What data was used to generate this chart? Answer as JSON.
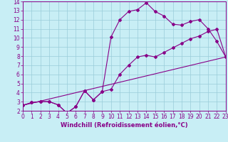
{
  "xlabel": "Windchill (Refroidissement éolien,°C)",
  "xlim": [
    0,
    23
  ],
  "ylim": [
    2,
    14
  ],
  "xticks": [
    0,
    1,
    2,
    3,
    4,
    5,
    6,
    7,
    8,
    9,
    10,
    11,
    12,
    13,
    14,
    15,
    16,
    17,
    18,
    19,
    20,
    21,
    22,
    23
  ],
  "yticks": [
    2,
    3,
    4,
    5,
    6,
    7,
    8,
    9,
    10,
    11,
    12,
    13,
    14
  ],
  "bg_color": "#c8eef5",
  "grid_color": "#99ccd9",
  "line_color": "#880088",
  "line1_x": [
    0,
    1,
    2,
    3,
    4,
    5,
    6,
    7,
    8,
    9,
    10,
    11,
    12,
    13,
    14,
    15,
    16,
    17,
    18,
    19,
    20,
    21,
    22,
    23
  ],
  "line1_y": [
    2.6,
    2.9,
    3.0,
    3.0,
    2.65,
    1.75,
    2.45,
    4.2,
    3.2,
    4.1,
    4.35,
    6.0,
    7.0,
    7.9,
    8.1,
    7.9,
    8.4,
    8.9,
    9.4,
    9.9,
    10.2,
    10.7,
    10.95,
    7.9
  ],
  "line2_x": [
    0,
    1,
    2,
    3,
    4,
    5,
    6,
    7,
    8,
    9,
    10,
    11,
    12,
    13,
    14,
    15,
    16,
    17,
    18,
    19,
    20,
    21,
    22,
    23
  ],
  "line2_y": [
    2.6,
    2.9,
    3.0,
    3.0,
    2.65,
    1.75,
    2.45,
    4.2,
    3.2,
    4.1,
    10.1,
    12.0,
    12.9,
    13.1,
    13.85,
    12.9,
    12.4,
    11.5,
    11.4,
    11.8,
    12.0,
    11.0,
    9.6,
    7.9
  ],
  "line3_x": [
    0,
    23
  ],
  "line3_y": [
    2.6,
    7.9
  ],
  "markersize": 2.0,
  "linewidth": 0.8,
  "tick_fontsize": 5.5,
  "label_fontsize": 6.0
}
